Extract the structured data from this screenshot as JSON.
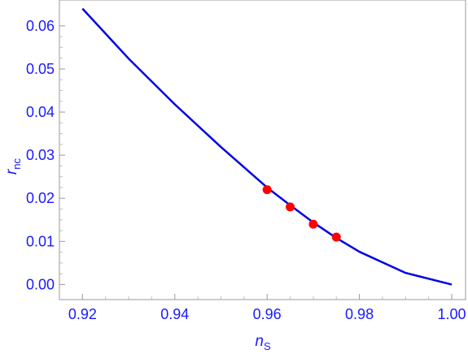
{
  "chart_data": {
    "type": "line",
    "xlabel": "n",
    "xlabel_sub": "S",
    "ylabel": "r",
    "ylabel_sub": "nc",
    "xlim": [
      0.915,
      1.003
    ],
    "ylim": [
      -0.0035,
      0.066
    ],
    "x_ticks": [
      0.92,
      0.94,
      0.96,
      0.98,
      1.0
    ],
    "x_tick_labels": [
      "0.92",
      "0.94",
      "0.96",
      "0.98",
      "1.00"
    ],
    "y_ticks": [
      0.0,
      0.01,
      0.02,
      0.03,
      0.04,
      0.05,
      0.06
    ],
    "y_tick_labels": [
      "0.00",
      "0.01",
      "0.02",
      "0.03",
      "0.04",
      "0.05",
      "0.06"
    ],
    "grid": false,
    "series": [
      {
        "kind": "line",
        "color": "#0000e6",
        "x": [
          0.92,
          0.93,
          0.94,
          0.95,
          0.96,
          0.965,
          0.97,
          0.975,
          0.98,
          0.99,
          1.0
        ],
        "y": [
          0.064,
          0.0524,
          0.0418,
          0.0319,
          0.0225,
          0.0184,
          0.0144,
          0.0108,
          0.0076,
          0.0027,
          0.0
        ]
      },
      {
        "kind": "points",
        "color": "#ff0000",
        "x": [
          0.96,
          0.965,
          0.97,
          0.975
        ],
        "y": [
          0.022,
          0.018,
          0.014,
          0.011
        ]
      }
    ]
  }
}
